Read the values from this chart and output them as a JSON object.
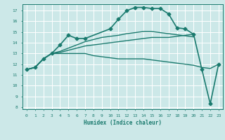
{
  "bg_color": "#cce8e8",
  "grid_color": "#ffffff",
  "line_color": "#1a7a6e",
  "xlabel": "Humidex (Indice chaleur)",
  "ylim": [
    7.8,
    17.6
  ],
  "xlim": [
    -0.5,
    23.5
  ],
  "yticks": [
    8,
    9,
    10,
    11,
    12,
    13,
    14,
    15,
    16,
    17
  ],
  "xticks": [
    0,
    1,
    2,
    3,
    4,
    5,
    6,
    7,
    8,
    9,
    10,
    11,
    12,
    13,
    14,
    15,
    16,
    17,
    18,
    19,
    20,
    21,
    22,
    23
  ],
  "series": [
    {
      "x": [
        0,
        1,
        2,
        3,
        4,
        5,
        6,
        7,
        10,
        11,
        12,
        13,
        14,
        15,
        16,
        17,
        18,
        19,
        20,
        21,
        22,
        23
      ],
      "y": [
        11.5,
        11.7,
        12.5,
        13.0,
        13.8,
        14.7,
        14.4,
        14.4,
        15.3,
        16.2,
        17.0,
        17.3,
        17.3,
        17.2,
        17.2,
        16.7,
        15.4,
        15.3,
        14.8,
        11.5,
        8.3,
        12.0
      ],
      "marker": "D",
      "ms": 2.5,
      "lw": 1.2
    },
    {
      "x": [
        0,
        1,
        2,
        3,
        4,
        5,
        6,
        7,
        8,
        9,
        10,
        11,
        12,
        13,
        14,
        15,
        16,
        17,
        18,
        19,
        20,
        21,
        22,
        23
      ],
      "y": [
        11.5,
        11.7,
        12.5,
        13.0,
        13.0,
        13.0,
        13.0,
        13.0,
        12.8,
        12.7,
        12.6,
        12.5,
        12.5,
        12.5,
        12.5,
        12.4,
        12.3,
        12.2,
        12.1,
        12.0,
        11.9,
        11.7,
        11.6,
        12.0
      ],
      "marker": null,
      "ms": 0,
      "lw": 1.0
    },
    {
      "x": [
        0,
        1,
        2,
        3,
        4,
        5,
        6,
        7,
        8,
        9,
        10,
        11,
        12,
        13,
        14,
        15,
        16,
        17,
        18,
        19,
        20
      ],
      "y": [
        11.5,
        11.7,
        12.5,
        13.0,
        13.1,
        13.3,
        13.5,
        13.7,
        13.8,
        13.9,
        14.0,
        14.1,
        14.2,
        14.3,
        14.4,
        14.5,
        14.5,
        14.5,
        14.6,
        14.7,
        14.8
      ],
      "marker": null,
      "ms": 0,
      "lw": 1.0
    },
    {
      "x": [
        0,
        1,
        2,
        3,
        4,
        5,
        6,
        7,
        8,
        9,
        10,
        11,
        12,
        13,
        14,
        15,
        16,
        17,
        18,
        19,
        20
      ],
      "y": [
        11.5,
        11.7,
        12.5,
        13.0,
        13.2,
        13.5,
        13.8,
        14.1,
        14.3,
        14.5,
        14.6,
        14.7,
        14.85,
        14.95,
        15.05,
        15.05,
        14.95,
        14.85,
        14.75,
        14.65,
        14.55
      ],
      "marker": null,
      "ms": 0,
      "lw": 1.0
    }
  ]
}
